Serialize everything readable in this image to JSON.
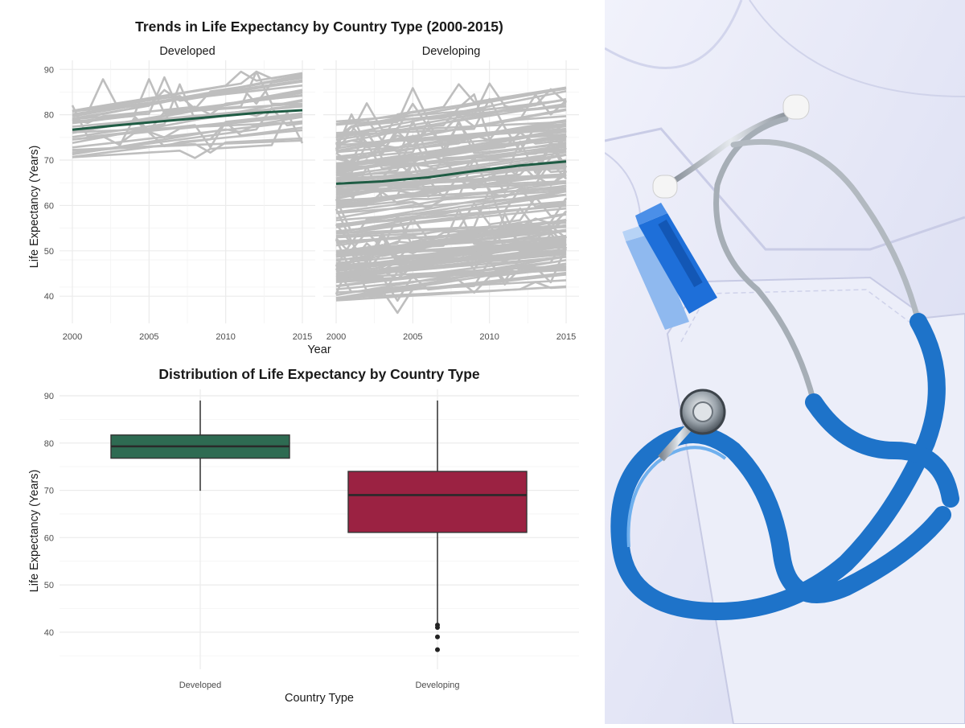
{
  "colors": {
    "developed": "#2e6b52",
    "developing": "#9b2242",
    "trend": "#1f5c44",
    "country_lines": "#bebebe",
    "grid": "#ebebeb",
    "text": "#1a1a1a",
    "tick_text": "#4d4d4d"
  },
  "chart_data": [
    {
      "type": "line",
      "title": "Trends in Life Expectancy by Country Type (2000-2015)",
      "xlabel": "Year",
      "ylabel": "Life Expectancy (Years)",
      "facets": [
        "Developed",
        "Developing"
      ],
      "x_ticks": [
        2000,
        2005,
        2010,
        2015
      ],
      "y_ticks": [
        40,
        50,
        60,
        70,
        80,
        90
      ],
      "xlim": [
        2000,
        2015
      ],
      "ylim": [
        34,
        92
      ],
      "grid": true,
      "legend": "none",
      "country_line_bands": {
        "Developed": {
          "count": 32,
          "start_range": [
            70.5,
            81
          ],
          "end_range": [
            74,
            88
          ]
        },
        "Developing": {
          "count": 150,
          "start_range": [
            39,
            79
          ],
          "end_range": [
            48,
            85
          ]
        }
      },
      "series": [
        {
          "name": "Developed",
          "x": [
            2000,
            2003,
            2006,
            2009,
            2012,
            2015
          ],
          "values": [
            76.7,
            77.7,
            78.6,
            79.5,
            80.4,
            81.0
          ]
        },
        {
          "name": "Developing",
          "x": [
            2000,
            2003,
            2006,
            2009,
            2012,
            2015
          ],
          "values": [
            64.8,
            65.3,
            66.2,
            67.6,
            68.8,
            69.7
          ]
        }
      ]
    },
    {
      "type": "box",
      "title": "Distribution of Life Expectancy by Country Type",
      "xlabel": "Country Type",
      "ylabel": "Life Expectancy (Years)",
      "categories": [
        "Developed",
        "Developing"
      ],
      "y_ticks": [
        40,
        50,
        60,
        70,
        80,
        90
      ],
      "ylim": [
        35,
        90
      ],
      "grid": true,
      "legend": "none",
      "boxes": [
        {
          "category": "Developed",
          "min": 69.9,
          "q1": 76.8,
          "median": 79.3,
          "q3": 81.7,
          "max": 89.0,
          "outliers": []
        },
        {
          "category": "Developing",
          "min": 42.0,
          "q1": 61.1,
          "median": 69.0,
          "q3": 74.0,
          "max": 89.0,
          "outliers": [
            41.5,
            41.0,
            39.0,
            36.3
          ]
        }
      ]
    }
  ],
  "photo": {
    "description_icon": "stethoscope-on-lab-coat-photo"
  }
}
